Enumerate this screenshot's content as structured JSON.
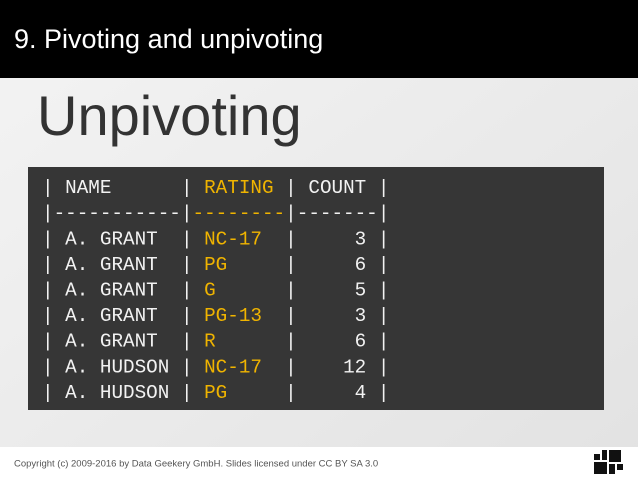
{
  "header": {
    "title": "9. Pivoting and unpivoting"
  },
  "heading": "Unpivoting",
  "table": {
    "columns": [
      "NAME",
      "RATING",
      "COUNT"
    ],
    "rows": [
      [
        "A. GRANT",
        "NC-17",
        3
      ],
      [
        "A. GRANT",
        "PG",
        6
      ],
      [
        "A. GRANT",
        "G",
        5
      ],
      [
        "A. GRANT",
        "PG-13",
        3
      ],
      [
        "A. GRANT",
        "R",
        6
      ],
      [
        "A. HUDSON",
        "NC-17",
        12
      ],
      [
        "A. HUDSON",
        "PG",
        4
      ]
    ]
  },
  "footer": {
    "copyright": "Copyright (c) 2009-2016 by Data Geekery GmbH. Slides licensed under CC BY SA 3.0"
  }
}
